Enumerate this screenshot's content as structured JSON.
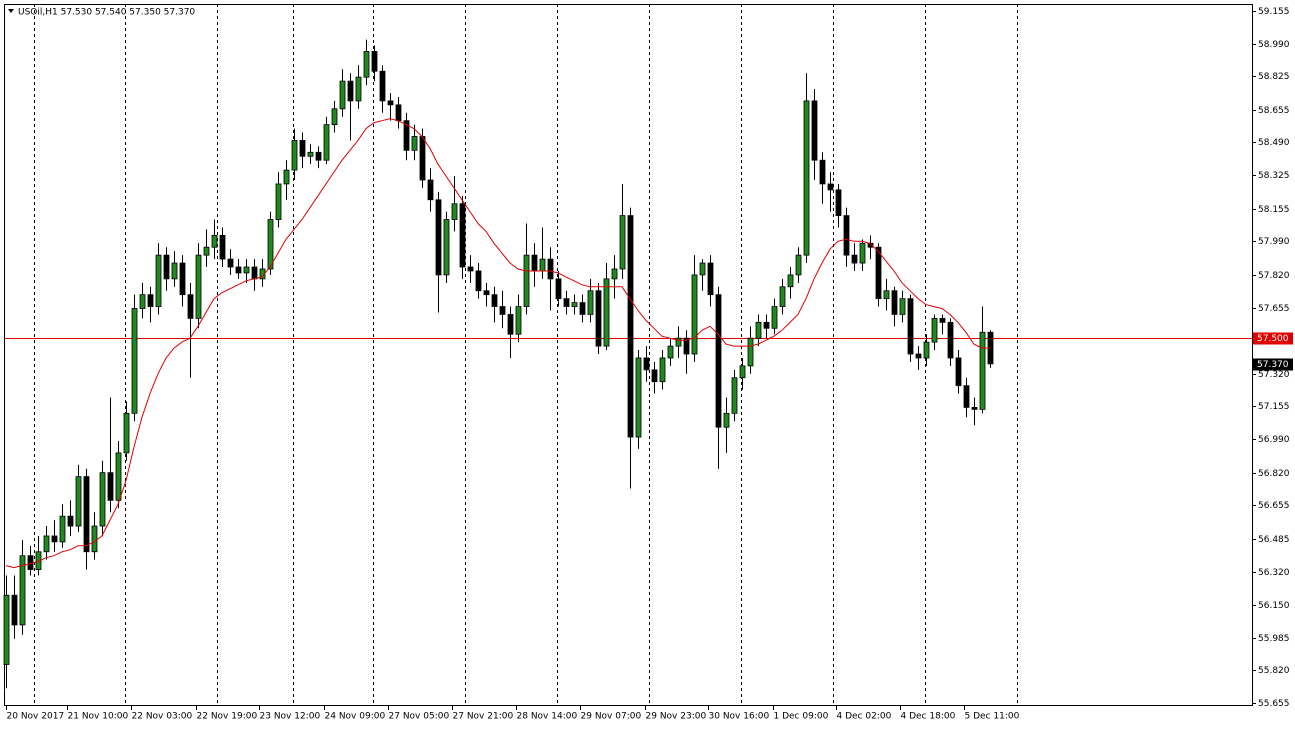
{
  "chart_data": {
    "type": "candlestick",
    "title": "USOil,H1  57.530 57.540 57.350 57.370",
    "up_color": "#1f8a1f",
    "down_color": "#000000",
    "ma_color": "#e00000",
    "ylim": [
      55.64,
      59.19
    ],
    "xlim": [
      -0.25,
      155.75
    ],
    "yticks": [
      {
        "value": 59.155,
        "label": "59.155"
      },
      {
        "value": 58.99,
        "label": "58.990"
      },
      {
        "value": 58.825,
        "label": "58.825"
      },
      {
        "value": 58.655,
        "label": "58.655"
      },
      {
        "value": 58.49,
        "label": "58.490"
      },
      {
        "value": 58.325,
        "label": "58.325"
      },
      {
        "value": 58.155,
        "label": "58.155"
      },
      {
        "value": 57.99,
        "label": "57.990"
      },
      {
        "value": 57.82,
        "label": "57.820"
      },
      {
        "value": 57.655,
        "label": "57.655"
      },
      {
        "value": 57.32,
        "label": "57.320"
      },
      {
        "value": 57.155,
        "label": "57.155"
      },
      {
        "value": 56.99,
        "label": "56.990"
      },
      {
        "value": 56.82,
        "label": "56.820"
      },
      {
        "value": 56.655,
        "label": "56.655"
      },
      {
        "value": 56.485,
        "label": "56.485"
      },
      {
        "value": 56.32,
        "label": "56.320"
      },
      {
        "value": 56.15,
        "label": "56.150"
      },
      {
        "value": 55.985,
        "label": "55.985"
      },
      {
        "value": 55.82,
        "label": "55.820"
      },
      {
        "value": 55.655,
        "label": "55.655"
      }
    ],
    "xticks": [
      {
        "value": 0,
        "label": "20 Nov 2017"
      },
      {
        "value": 7.63,
        "label": "21 Nov 10:00"
      },
      {
        "value": 15.63,
        "label": "22 Nov 03:00"
      },
      {
        "value": 23.75,
        "label": "22 Nov 19:00"
      },
      {
        "value": 31.63,
        "label": "23 Nov 12:00"
      },
      {
        "value": 39.75,
        "label": "24 Nov 09:00"
      },
      {
        "value": 47.75,
        "label": "27 Nov 05:00"
      },
      {
        "value": 55.75,
        "label": "27 Nov 21:00"
      },
      {
        "value": 63.75,
        "label": "28 Nov 14:00"
      },
      {
        "value": 71.75,
        "label": "29 Nov 07:00"
      },
      {
        "value": 79.88,
        "label": "29 Nov 23:00"
      },
      {
        "value": 87.75,
        "label": "30 Nov 16:00"
      },
      {
        "value": 95.88,
        "label": "1 Dec 09:00"
      },
      {
        "value": 103.75,
        "label": "4 Dec 02:00"
      },
      {
        "value": 111.75,
        "label": "4 Dec 18:00"
      },
      {
        "value": 119.75,
        "label": "5 Dec 11:00"
      }
    ],
    "xgrid": [
      3.5,
      14.88,
      26.38,
      35.88,
      45.88,
      57.38,
      68.88,
      80.38,
      91.88,
      103.38,
      114.88,
      126.38
    ],
    "hline": {
      "value": 57.5,
      "label": "57.500",
      "color": "#e00000"
    },
    "last_price": {
      "value": 57.37,
      "label": "57.370"
    },
    "ohlc": [
      [
        55.85,
        56.3,
        55.73,
        56.2
      ],
      [
        56.2,
        56.3,
        55.98,
        56.05
      ],
      [
        56.05,
        56.48,
        56.0,
        56.4
      ],
      [
        56.4,
        56.45,
        56.3,
        56.33
      ],
      [
        56.33,
        56.5,
        56.3,
        56.42
      ],
      [
        56.42,
        56.55,
        56.38,
        56.5
      ],
      [
        56.5,
        56.58,
        56.42,
        56.47
      ],
      [
        56.47,
        56.66,
        56.44,
        56.6
      ],
      [
        56.6,
        56.68,
        56.5,
        56.55
      ],
      [
        56.55,
        56.86,
        56.52,
        56.8
      ],
      [
        56.8,
        56.84,
        56.33,
        56.42
      ],
      [
        56.42,
        56.62,
        56.38,
        56.55
      ],
      [
        56.55,
        56.88,
        56.5,
        56.82
      ],
      [
        56.82,
        57.2,
        56.62,
        56.68
      ],
      [
        56.68,
        56.98,
        56.64,
        56.92
      ],
      [
        56.92,
        57.18,
        56.88,
        57.12
      ],
      [
        57.12,
        57.72,
        57.08,
        57.65
      ],
      [
        57.65,
        57.78,
        57.6,
        57.72
      ],
      [
        57.72,
        57.76,
        57.58,
        57.66
      ],
      [
        57.66,
        57.98,
        57.62,
        57.92
      ],
      [
        57.92,
        57.96,
        57.74,
        57.8
      ],
      [
        57.8,
        57.94,
        57.76,
        57.88
      ],
      [
        57.88,
        57.92,
        57.66,
        57.72
      ],
      [
        57.72,
        57.78,
        57.3,
        57.6
      ],
      [
        57.6,
        57.98,
        57.55,
        57.92
      ],
      [
        57.92,
        58.05,
        57.86,
        57.96
      ],
      [
        57.96,
        58.1,
        57.9,
        58.02
      ],
      [
        58.02,
        58.06,
        57.86,
        57.9
      ],
      [
        57.9,
        57.95,
        57.82,
        57.86
      ],
      [
        57.86,
        57.9,
        57.8,
        57.83
      ],
      [
        57.83,
        57.9,
        57.78,
        57.86
      ],
      [
        57.86,
        57.9,
        57.74,
        57.8
      ],
      [
        57.8,
        57.9,
        57.76,
        57.85
      ],
      [
        57.85,
        58.14,
        57.82,
        58.1
      ],
      [
        58.1,
        58.34,
        58.06,
        58.28
      ],
      [
        58.28,
        58.4,
        58.2,
        58.35
      ],
      [
        58.35,
        58.56,
        58.3,
        58.5
      ],
      [
        58.5,
        58.54,
        58.36,
        58.42
      ],
      [
        58.42,
        58.48,
        58.38,
        58.44
      ],
      [
        58.44,
        58.47,
        58.36,
        58.4
      ],
      [
        58.4,
        58.62,
        58.38,
        58.58
      ],
      [
        58.58,
        58.7,
        58.54,
        58.66
      ],
      [
        58.66,
        58.86,
        58.62,
        58.8
      ],
      [
        58.8,
        58.84,
        58.5,
        58.7
      ],
      [
        58.7,
        58.88,
        58.66,
        58.82
      ],
      [
        58.82,
        59.01,
        58.78,
        58.95
      ],
      [
        58.95,
        58.98,
        58.8,
        58.85
      ],
      [
        58.85,
        58.88,
        58.64,
        58.7
      ],
      [
        58.7,
        58.74,
        58.6,
        58.68
      ],
      [
        58.68,
        58.72,
        58.56,
        58.6
      ],
      [
        58.6,
        58.64,
        58.4,
        58.45
      ],
      [
        58.45,
        58.58,
        58.4,
        58.52
      ],
      [
        58.52,
        58.56,
        58.26,
        58.3
      ],
      [
        58.3,
        58.36,
        58.14,
        58.2
      ],
      [
        58.2,
        58.24,
        57.63,
        57.82
      ],
      [
        57.82,
        58.14,
        57.78,
        58.1
      ],
      [
        58.1,
        58.32,
        58.04,
        58.18
      ],
      [
        58.18,
        58.22,
        57.8,
        57.86
      ],
      [
        57.86,
        57.92,
        57.78,
        57.84
      ],
      [
        57.84,
        57.88,
        57.7,
        57.74
      ],
      [
        57.74,
        57.78,
        57.66,
        57.72
      ],
      [
        57.72,
        57.76,
        57.58,
        57.66
      ],
      [
        57.66,
        57.74,
        57.55,
        57.62
      ],
      [
        57.62,
        57.66,
        57.4,
        57.52
      ],
      [
        57.52,
        57.72,
        57.48,
        57.66
      ],
      [
        57.66,
        58.08,
        57.62,
        57.92
      ],
      [
        57.92,
        57.98,
        57.76,
        57.84
      ],
      [
        57.84,
        58.06,
        57.8,
        57.9
      ],
      [
        57.9,
        57.96,
        57.64,
        57.8
      ],
      [
        57.8,
        57.84,
        57.66,
        57.7
      ],
      [
        57.7,
        57.74,
        57.62,
        57.66
      ],
      [
        57.66,
        57.72,
        57.62,
        57.68
      ],
      [
        57.68,
        57.72,
        57.58,
        57.62
      ],
      [
        57.62,
        57.8,
        57.58,
        57.74
      ],
      [
        57.74,
        57.78,
        57.42,
        57.46
      ],
      [
        57.46,
        57.88,
        57.44,
        57.8
      ],
      [
        57.8,
        57.92,
        57.7,
        57.85
      ],
      [
        57.85,
        58.28,
        57.8,
        58.12
      ],
      [
        58.12,
        58.16,
        56.74,
        57.0
      ],
      [
        57.0,
        57.44,
        56.94,
        57.4
      ],
      [
        57.4,
        57.46,
        57.28,
        57.34
      ],
      [
        57.34,
        57.38,
        57.22,
        57.28
      ],
      [
        57.28,
        57.44,
        57.24,
        57.4
      ],
      [
        57.4,
        57.5,
        57.36,
        57.46
      ],
      [
        57.46,
        57.56,
        57.4,
        57.5
      ],
      [
        57.5,
        57.54,
        57.32,
        57.42
      ],
      [
        57.42,
        57.92,
        57.38,
        57.82
      ],
      [
        57.82,
        57.9,
        57.74,
        57.88
      ],
      [
        57.88,
        57.92,
        57.66,
        57.72
      ],
      [
        57.72,
        57.76,
        56.84,
        57.05
      ],
      [
        57.05,
        57.2,
        56.92,
        57.12
      ],
      [
        57.12,
        57.34,
        57.08,
        57.3
      ],
      [
        57.3,
        57.4,
        57.24,
        57.36
      ],
      [
        57.36,
        57.56,
        57.32,
        57.5
      ],
      [
        57.5,
        57.62,
        57.46,
        57.58
      ],
      [
        57.58,
        57.62,
        57.5,
        57.55
      ],
      [
        57.55,
        57.7,
        57.52,
        57.66
      ],
      [
        57.66,
        57.8,
        57.62,
        57.76
      ],
      [
        57.76,
        57.86,
        57.7,
        57.82
      ],
      [
        57.82,
        57.96,
        57.78,
        57.92
      ],
      [
        57.92,
        58.84,
        57.88,
        58.7
      ],
      [
        58.7,
        58.76,
        58.3,
        58.4
      ],
      [
        58.4,
        58.44,
        58.18,
        58.28
      ],
      [
        58.28,
        58.34,
        58.14,
        58.25
      ],
      [
        58.25,
        58.28,
        58.06,
        58.12
      ],
      [
        58.12,
        58.16,
        57.86,
        57.92
      ],
      [
        57.92,
        57.98,
        57.84,
        57.88
      ],
      [
        57.88,
        58.0,
        57.84,
        57.98
      ],
      [
        57.98,
        58.02,
        57.9,
        57.96
      ],
      [
        57.96,
        57.98,
        57.66,
        57.7
      ],
      [
        57.7,
        57.8,
        57.64,
        57.74
      ],
      [
        57.74,
        57.76,
        57.56,
        57.62
      ],
      [
        57.62,
        57.74,
        57.58,
        57.7
      ],
      [
        57.7,
        57.72,
        57.38,
        57.42
      ],
      [
        57.42,
        57.46,
        57.34,
        57.4
      ],
      [
        57.4,
        57.52,
        57.36,
        57.48
      ],
      [
        57.48,
        57.62,
        57.44,
        57.6
      ],
      [
        57.6,
        57.62,
        57.52,
        57.58
      ],
      [
        57.58,
        57.6,
        57.36,
        57.4
      ],
      [
        57.4,
        57.44,
        57.22,
        57.26
      ],
      [
        57.26,
        57.3,
        57.1,
        57.15
      ],
      [
        57.15,
        57.2,
        57.06,
        57.14
      ],
      [
        57.14,
        57.66,
        57.12,
        57.53
      ],
      [
        57.53,
        57.54,
        57.35,
        57.37
      ]
    ],
    "ma": [
      56.35,
      56.34,
      56.35,
      56.36,
      56.37,
      56.39,
      56.4,
      56.42,
      56.43,
      56.45,
      56.45,
      56.47,
      56.5,
      56.58,
      56.66,
      56.78,
      56.95,
      57.1,
      57.22,
      57.32,
      57.4,
      57.45,
      57.48,
      57.5,
      57.56,
      57.63,
      57.7,
      57.73,
      57.75,
      57.77,
      57.79,
      57.8,
      57.81,
      57.86,
      57.93,
      58.0,
      58.05,
      58.1,
      58.16,
      58.22,
      58.28,
      58.34,
      58.4,
      58.45,
      58.5,
      58.56,
      58.59,
      58.6,
      58.61,
      58.6,
      58.58,
      58.56,
      58.52,
      58.46,
      58.38,
      58.32,
      58.26,
      58.2,
      58.14,
      58.08,
      58.04,
      57.98,
      57.93,
      57.88,
      57.85,
      57.84,
      57.84,
      57.84,
      57.84,
      57.83,
      57.81,
      57.79,
      57.77,
      57.76,
      57.76,
      57.76,
      57.76,
      57.76,
      57.7,
      57.64,
      57.59,
      57.55,
      57.51,
      57.5,
      57.49,
      57.49,
      57.5,
      57.54,
      57.56,
      57.52,
      57.47,
      57.46,
      57.46,
      57.46,
      57.47,
      57.49,
      57.51,
      57.54,
      57.58,
      57.62,
      57.7,
      57.8,
      57.88,
      57.95,
      57.99,
      58.0,
      57.99,
      57.99,
      57.98,
      57.94,
      57.89,
      57.84,
      57.78,
      57.74,
      57.7,
      57.67,
      57.66,
      57.65,
      57.62,
      57.58,
      57.53,
      57.47,
      57.45,
      57.45
    ]
  }
}
